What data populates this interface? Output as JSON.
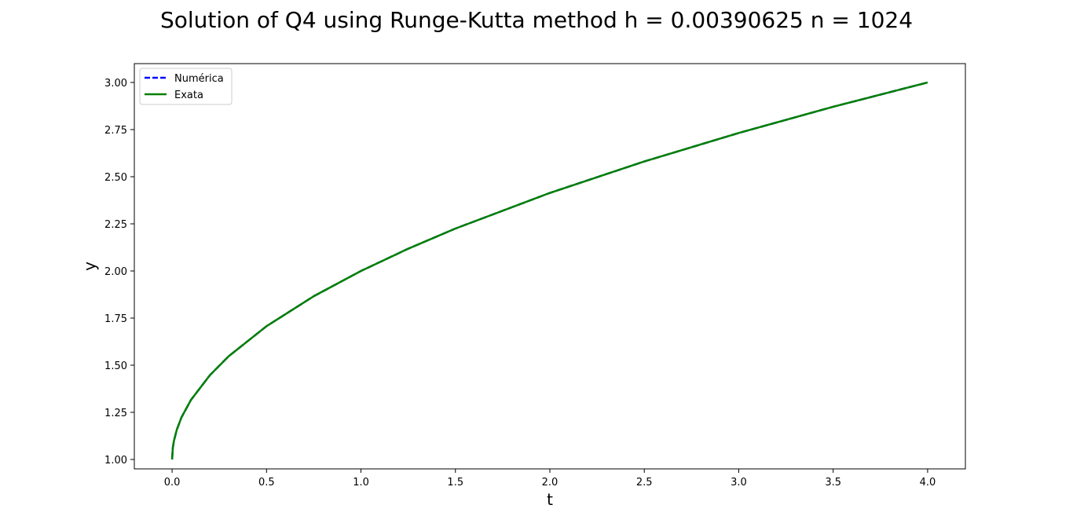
{
  "chart_data": {
    "type": "line",
    "title": "Solution of Q4 using Runge-Kutta method h = 0.00390625  n = 1024",
    "xlabel": "t",
    "ylabel": "y",
    "xlim": [
      -0.2,
      4.2
    ],
    "ylim": [
      0.95,
      3.1
    ],
    "x_ticks": [
      0.0,
      0.5,
      1.0,
      1.5,
      2.0,
      2.5,
      3.0,
      3.5,
      4.0
    ],
    "x_tick_labels": [
      "0.0",
      "0.5",
      "1.0",
      "1.5",
      "2.0",
      "2.5",
      "3.0",
      "3.5",
      "4.0"
    ],
    "y_ticks": [
      1.0,
      1.25,
      1.5,
      1.75,
      2.0,
      2.25,
      2.5,
      2.75,
      3.0
    ],
    "y_tick_labels": [
      "1.00",
      "1.25",
      "1.50",
      "1.75",
      "2.00",
      "2.25",
      "2.50",
      "2.75",
      "3.00"
    ],
    "grid": false,
    "legend_position": "top-left",
    "series": [
      {
        "name": "Numérica",
        "color": "#0000ff",
        "style": "dashed",
        "x": [
          0.0,
          0.00390625,
          0.01,
          0.025,
          0.05,
          0.1,
          0.2,
          0.3,
          0.5,
          0.75,
          1.0,
          1.25,
          1.5,
          2.0,
          2.5,
          3.0,
          3.5,
          4.0
        ],
        "y": [
          1.0,
          1.0625,
          1.1,
          1.158,
          1.224,
          1.316,
          1.447,
          1.548,
          1.707,
          1.866,
          2.0,
          2.118,
          2.225,
          2.414,
          2.581,
          2.732,
          2.871,
          3.0
        ]
      },
      {
        "name": "Exata",
        "color": "#008000",
        "style": "solid",
        "x": [
          0.0,
          0.00390625,
          0.01,
          0.025,
          0.05,
          0.1,
          0.2,
          0.3,
          0.5,
          0.75,
          1.0,
          1.25,
          1.5,
          2.0,
          2.5,
          3.0,
          3.5,
          4.0
        ],
        "y": [
          1.0,
          1.0625,
          1.1,
          1.158,
          1.224,
          1.316,
          1.447,
          1.548,
          1.707,
          1.866,
          2.0,
          2.118,
          2.225,
          2.414,
          2.581,
          2.732,
          2.871,
          3.0
        ]
      }
    ]
  }
}
